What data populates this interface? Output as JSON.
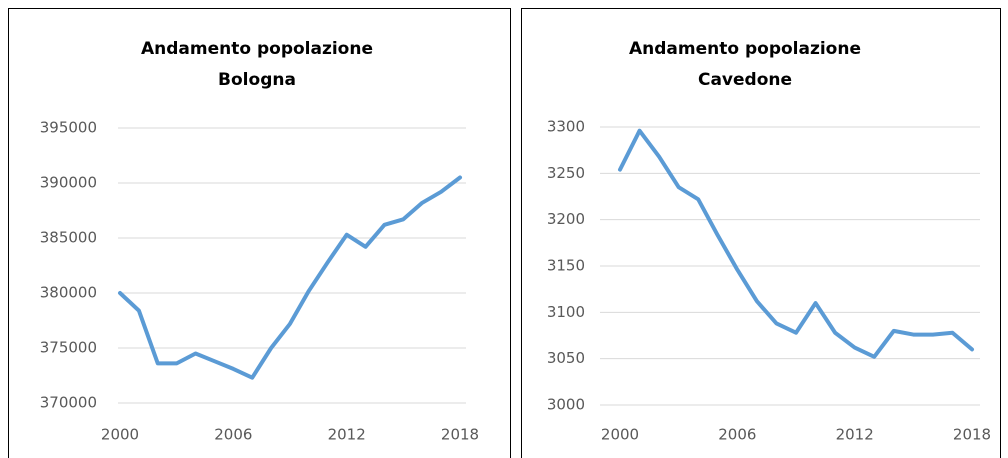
{
  "chart_data": [
    {
      "type": "line",
      "title": "Andamento popolazione",
      "subtitle": "Bologna",
      "x": [
        2000,
        2001,
        2002,
        2003,
        2004,
        2005,
        2006,
        2007,
        2008,
        2009,
        2010,
        2011,
        2012,
        2013,
        2014,
        2015,
        2016,
        2017,
        2018
      ],
      "series": [
        {
          "color": "#5b9bd5",
          "values": [
            380000,
            378400,
            373600,
            373600,
            374500,
            373800,
            373100,
            372300,
            375000,
            377200,
            380200,
            382800,
            385300,
            384200,
            386200,
            386700,
            388200,
            389200,
            390500
          ]
        }
      ],
      "xlim": [
        2000,
        2018
      ],
      "xticks": [
        2000,
        2006,
        2012,
        2018
      ],
      "ylim": [
        370000,
        395000
      ],
      "yticks": [
        370000,
        375000,
        380000,
        385000,
        390000,
        395000
      ],
      "grid": true
    },
    {
      "type": "line",
      "title": "Andamento popolazione",
      "subtitle": "Cavedone",
      "x": [
        2000,
        2001,
        2002,
        2003,
        2004,
        2005,
        2006,
        2007,
        2008,
        2009,
        2010,
        2011,
        2012,
        2013,
        2014,
        2015,
        2016,
        2017,
        2018
      ],
      "series": [
        {
          "color": "#5b9bd5",
          "values": [
            3254,
            3296,
            3268,
            3235,
            3222,
            3183,
            3146,
            3112,
            3088,
            3078,
            3110,
            3078,
            3062,
            3052,
            3080,
            3076,
            3076,
            3078,
            3060
          ]
        }
      ],
      "xlim": [
        2000,
        2018
      ],
      "xticks": [
        2000,
        2006,
        2012,
        2018
      ],
      "ylim": [
        3000,
        3300
      ],
      "yticks": [
        3000,
        3050,
        3100,
        3150,
        3200,
        3250,
        3300
      ],
      "grid": true
    }
  ]
}
